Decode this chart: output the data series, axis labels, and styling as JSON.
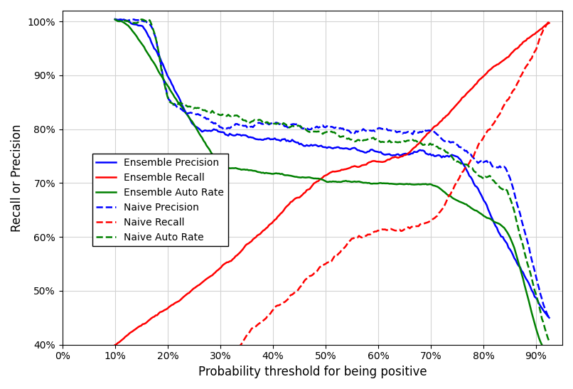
{
  "title": "",
  "xlabel": "Probability threshold for being positive",
  "ylabel": "Recall or Precision",
  "xlim": [
    0.0,
    0.95
  ],
  "ylim": [
    0.4,
    1.02
  ],
  "xticks": [
    0.0,
    0.1,
    0.2,
    0.3,
    0.4,
    0.5,
    0.6,
    0.7,
    0.8,
    0.9
  ],
  "yticks": [
    0.4,
    0.5,
    0.6,
    0.7,
    0.8,
    0.9,
    1.0
  ],
  "legend_labels": [
    "Ensemble Precision",
    "Ensemble Recall",
    "Ensemble Auto Rate",
    "Naive Precision",
    "Naive Recall",
    "Naive Auto Rate"
  ],
  "colors": {
    "blue": "#0000ff",
    "red": "#ff0000",
    "green": "#008000"
  },
  "figsize": [
    8.06,
    5.47
  ],
  "dpi": 100
}
